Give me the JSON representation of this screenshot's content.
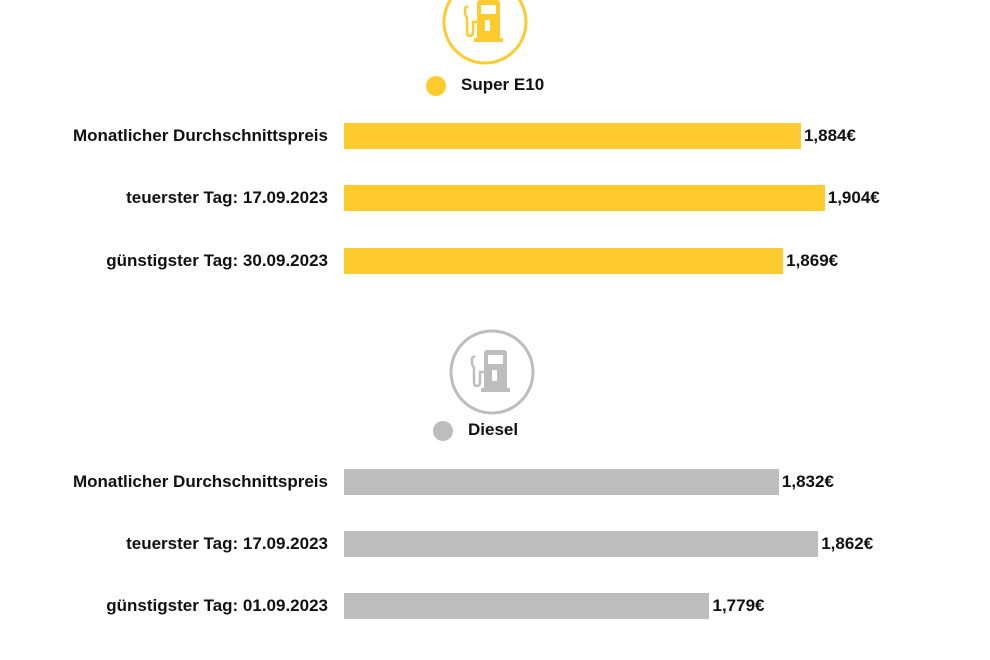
{
  "chart_data": {
    "type": "bar",
    "orientation": "horizontal",
    "x_baseline": 1.5,
    "unit": "€",
    "groups": [
      {
        "name": "Super E10",
        "icon": "fuel-pump-icon",
        "color": "#FDCB2E",
        "categories": [
          "Monatlicher Durchschnittspreis",
          "teuerster Tag: 17.09.2023",
          "günstigster Tag: 30.09.2023"
        ],
        "values": [
          1.884,
          1.904,
          1.869
        ],
        "labels": [
          "1,884€",
          "1,904€",
          "1,869€"
        ]
      },
      {
        "name": "Diesel",
        "icon": "fuel-pump-icon",
        "color": "#BDBDBD",
        "categories": [
          "Monatlicher Durchschnittspreis",
          "teuerster Tag: 17.09.2023",
          "günstigster Tag: 01.09.2023"
        ],
        "values": [
          1.832,
          1.862,
          1.779
        ],
        "labels": [
          "1,832€",
          "1,862€",
          "1,779€"
        ]
      }
    ]
  }
}
